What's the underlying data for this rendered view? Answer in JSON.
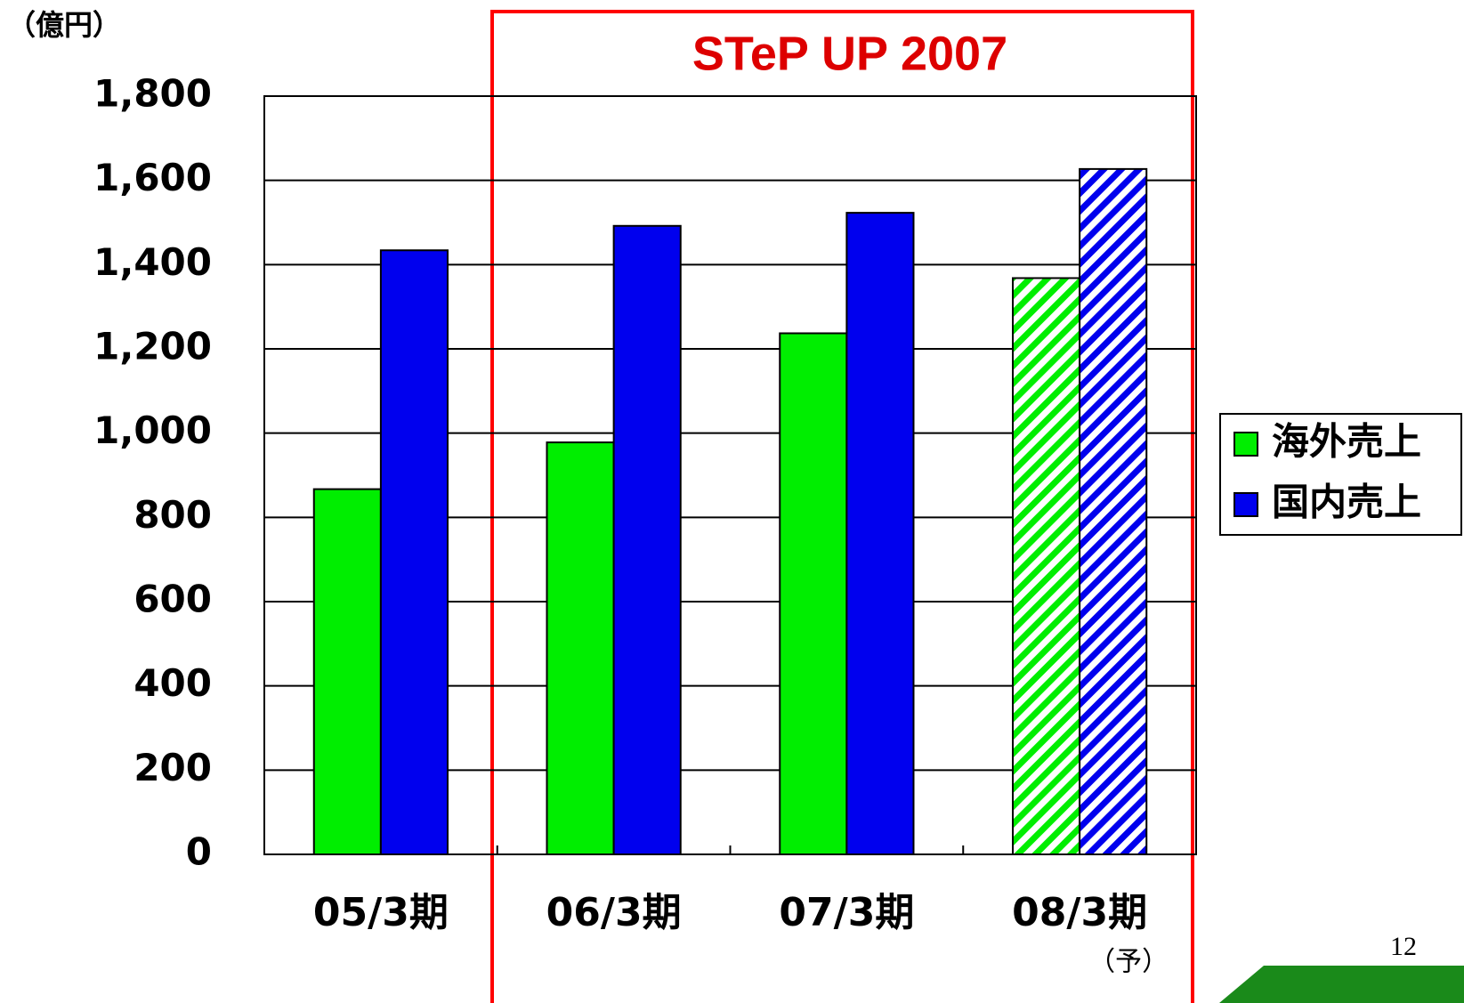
{
  "chart_data": {
    "type": "bar",
    "title": "STeP UP 2007",
    "y_unit_label": "（億円）",
    "categories": [
      "05/3期",
      "06/3期",
      "07/3期",
      "08/3期"
    ],
    "category_notes": [
      null,
      null,
      null,
      "（予）"
    ],
    "hatch": [
      false,
      false,
      false,
      true
    ],
    "series": [
      {
        "name": "海外売上",
        "color": "#00ee00",
        "values": [
          867,
          978,
          1237,
          1368
        ]
      },
      {
        "name": "国内売上",
        "color": "#0000ee",
        "values": [
          1434,
          1492,
          1523,
          1627
        ]
      }
    ],
    "ylim": [
      0,
      1800
    ],
    "yticks": [
      0,
      200,
      400,
      600,
      800,
      {
        "value": 1000,
        "label": "1,000"
      },
      {
        "value": 1200,
        "label": "1,200"
      },
      {
        "value": 1400,
        "label": "1,400"
      },
      {
        "value": 1600,
        "label": "1,600"
      },
      {
        "value": 1800,
        "label": "1,800"
      }
    ],
    "grid": true,
    "legend": "right",
    "page_number": "12"
  }
}
